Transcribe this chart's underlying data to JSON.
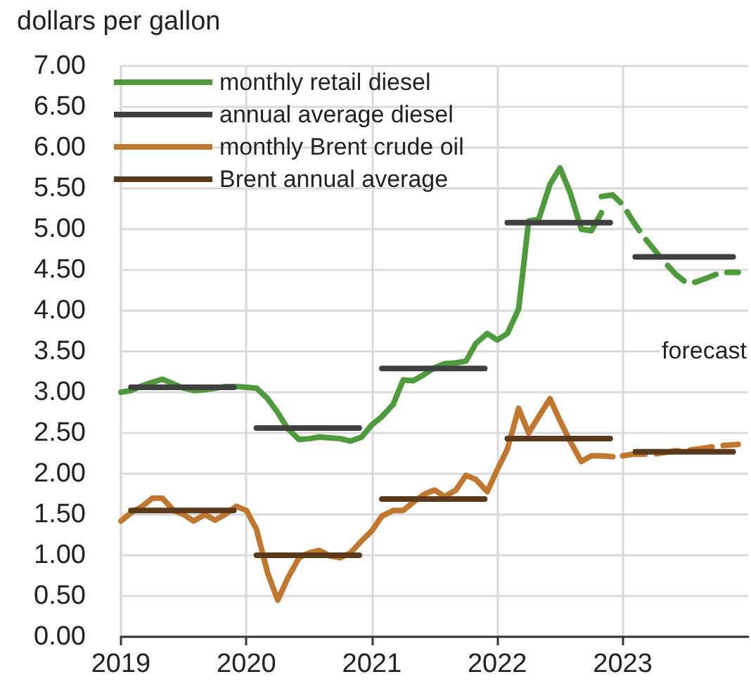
{
  "chart_data": {
    "type": "line",
    "ylabel": "dollars per gallon",
    "annotations": [
      "forecast"
    ],
    "xlim": [
      2019,
      2024
    ],
    "xticks": [
      2019,
      2020,
      2021,
      2022,
      2023
    ],
    "ylim": [
      0,
      7
    ],
    "yticks": [
      {
        "value": 0,
        "label": "0.00"
      },
      {
        "value": 0.5,
        "label": "0.50"
      },
      {
        "value": 1,
        "label": "1.00"
      },
      {
        "value": 1.5,
        "label": "1.50"
      },
      {
        "value": 2,
        "label": "2.00"
      },
      {
        "value": 2.5,
        "label": "2.50"
      },
      {
        "value": 3,
        "label": "3.00"
      },
      {
        "value": 3.5,
        "label": "3.50"
      },
      {
        "value": 4,
        "label": "4.00"
      },
      {
        "value": 4.5,
        "label": "4.50"
      },
      {
        "value": 5,
        "label": "5.00"
      },
      {
        "value": 5.5,
        "label": "5.50"
      },
      {
        "value": 6,
        "label": "6.00"
      },
      {
        "value": 6.5,
        "label": "6.50"
      },
      {
        "value": 7,
        "label": "7.00"
      }
    ],
    "grid": true,
    "legend": "top left",
    "marker": "none",
    "line_style": "solid",
    "series": [
      {
        "name": "monthly retail diesel",
        "color": "#4e9a3d",
        "x": [
          2019,
          2019.08,
          2019.17,
          2019.25,
          2019.33,
          2019.42,
          2019.5,
          2019.58,
          2019.67,
          2019.75,
          2019.83,
          2019.92,
          2020,
          2020.08,
          2020.17,
          2020.25,
          2020.33,
          2020.42,
          2020.5,
          2020.58,
          2020.67,
          2020.75,
          2020.83,
          2020.92,
          2021,
          2021.08,
          2021.17,
          2021.25,
          2021.33,
          2021.42,
          2021.5,
          2021.58,
          2021.67,
          2021.75,
          2021.83,
          2021.92,
          2022,
          2022.08,
          2022.17,
          2022.25,
          2022.33,
          2022.42,
          2022.5,
          2022.58,
          2022.67,
          2022.75,
          2022.83
        ],
        "values": [
          3.0,
          3.02,
          3.08,
          3.12,
          3.16,
          3.1,
          3.05,
          3.02,
          3.03,
          3.05,
          3.07,
          3.07,
          3.06,
          3.05,
          2.92,
          2.75,
          2.55,
          2.42,
          2.43,
          2.45,
          2.44,
          2.43,
          2.4,
          2.45,
          2.6,
          2.7,
          2.85,
          3.15,
          3.14,
          3.22,
          3.3,
          3.35,
          3.36,
          3.38,
          3.6,
          3.72,
          3.64,
          3.72,
          4.02,
          5.1,
          5.12,
          5.55,
          5.75,
          5.45,
          5.0,
          4.98,
          5.2
        ]
      },
      {
        "color": "#4e9a3d",
        "line_style": "dashed",
        "x": [
          2022.83,
          2022.92,
          2023,
          2023.08,
          2023.17,
          2023.25,
          2023.33,
          2023.42,
          2023.5,
          2023.58,
          2023.67,
          2023.75,
          2023.83,
          2023.92
        ],
        "values": [
          5.4,
          5.42,
          5.3,
          5.1,
          4.9,
          4.75,
          4.6,
          4.45,
          4.35,
          4.35,
          4.4,
          4.45,
          4.47,
          4.47
        ]
      },
      {
        "name": "annual average diesel",
        "color": "#404040",
        "x": [
          2019.08,
          2019.9,
          2019.95,
          2020.08,
          2020.9,
          2020.95,
          2021.08,
          2021.9,
          2021.95,
          2022.08,
          2022.9,
          2022.95,
          2023.1,
          2023.88
        ],
        "values": [
          3.06,
          3.06,
          null,
          2.56,
          2.56,
          null,
          3.29,
          3.29,
          null,
          5.08,
          5.08,
          null,
          4.66,
          4.66
        ]
      },
      {
        "name": "monthly Brent crude oil",
        "color": "#c0772f",
        "x": [
          2019,
          2019.08,
          2019.17,
          2019.25,
          2019.33,
          2019.42,
          2019.5,
          2019.58,
          2019.67,
          2019.75,
          2019.83,
          2019.92,
          2020,
          2020.08,
          2020.17,
          2020.25,
          2020.33,
          2020.42,
          2020.5,
          2020.58,
          2020.67,
          2020.75,
          2020.83,
          2020.92,
          2021,
          2021.08,
          2021.17,
          2021.25,
          2021.33,
          2021.42,
          2021.5,
          2021.58,
          2021.67,
          2021.75,
          2021.83,
          2021.92,
          2022,
          2022.08,
          2022.17,
          2022.25,
          2022.33,
          2022.42,
          2022.5,
          2022.58,
          2022.67,
          2022.75,
          2022.83,
          2022.92
        ],
        "values": [
          1.42,
          1.52,
          1.6,
          1.7,
          1.7,
          1.55,
          1.5,
          1.42,
          1.5,
          1.43,
          1.5,
          1.6,
          1.55,
          1.32,
          0.78,
          0.45,
          0.72,
          0.97,
          1.03,
          1.06,
          0.99,
          0.97,
          1.03,
          1.18,
          1.3,
          1.48,
          1.55,
          1.55,
          1.65,
          1.75,
          1.8,
          1.72,
          1.8,
          1.98,
          1.93,
          1.78,
          2.05,
          2.3,
          2.8,
          2.5,
          2.7,
          2.92,
          2.65,
          2.4,
          2.15,
          2.22,
          2.22,
          2.21
        ]
      },
      {
        "color": "#c0772f",
        "line_style": "dashed",
        "x": [
          2023,
          2023.08,
          2023.17,
          2023.25,
          2023.33,
          2023.42,
          2023.5,
          2023.58,
          2023.67,
          2023.75,
          2023.83,
          2023.92
        ],
        "values": [
          2.22,
          2.24,
          2.24,
          2.24,
          2.26,
          2.28,
          2.28,
          2.3,
          2.32,
          2.34,
          2.35,
          2.36
        ]
      },
      {
        "name": "Brent annual average",
        "color": "#5a3a1a",
        "x": [
          2019.08,
          2019.9,
          2019.95,
          2020.08,
          2020.9,
          2020.95,
          2021.08,
          2021.9,
          2021.95,
          2022.08,
          2022.9,
          2022.95,
          2023.1,
          2023.88
        ],
        "values": [
          1.55,
          1.55,
          null,
          1.0,
          1.0,
          null,
          1.69,
          1.69,
          null,
          2.43,
          2.43,
          null,
          2.27,
          2.27
        ]
      }
    ]
  }
}
